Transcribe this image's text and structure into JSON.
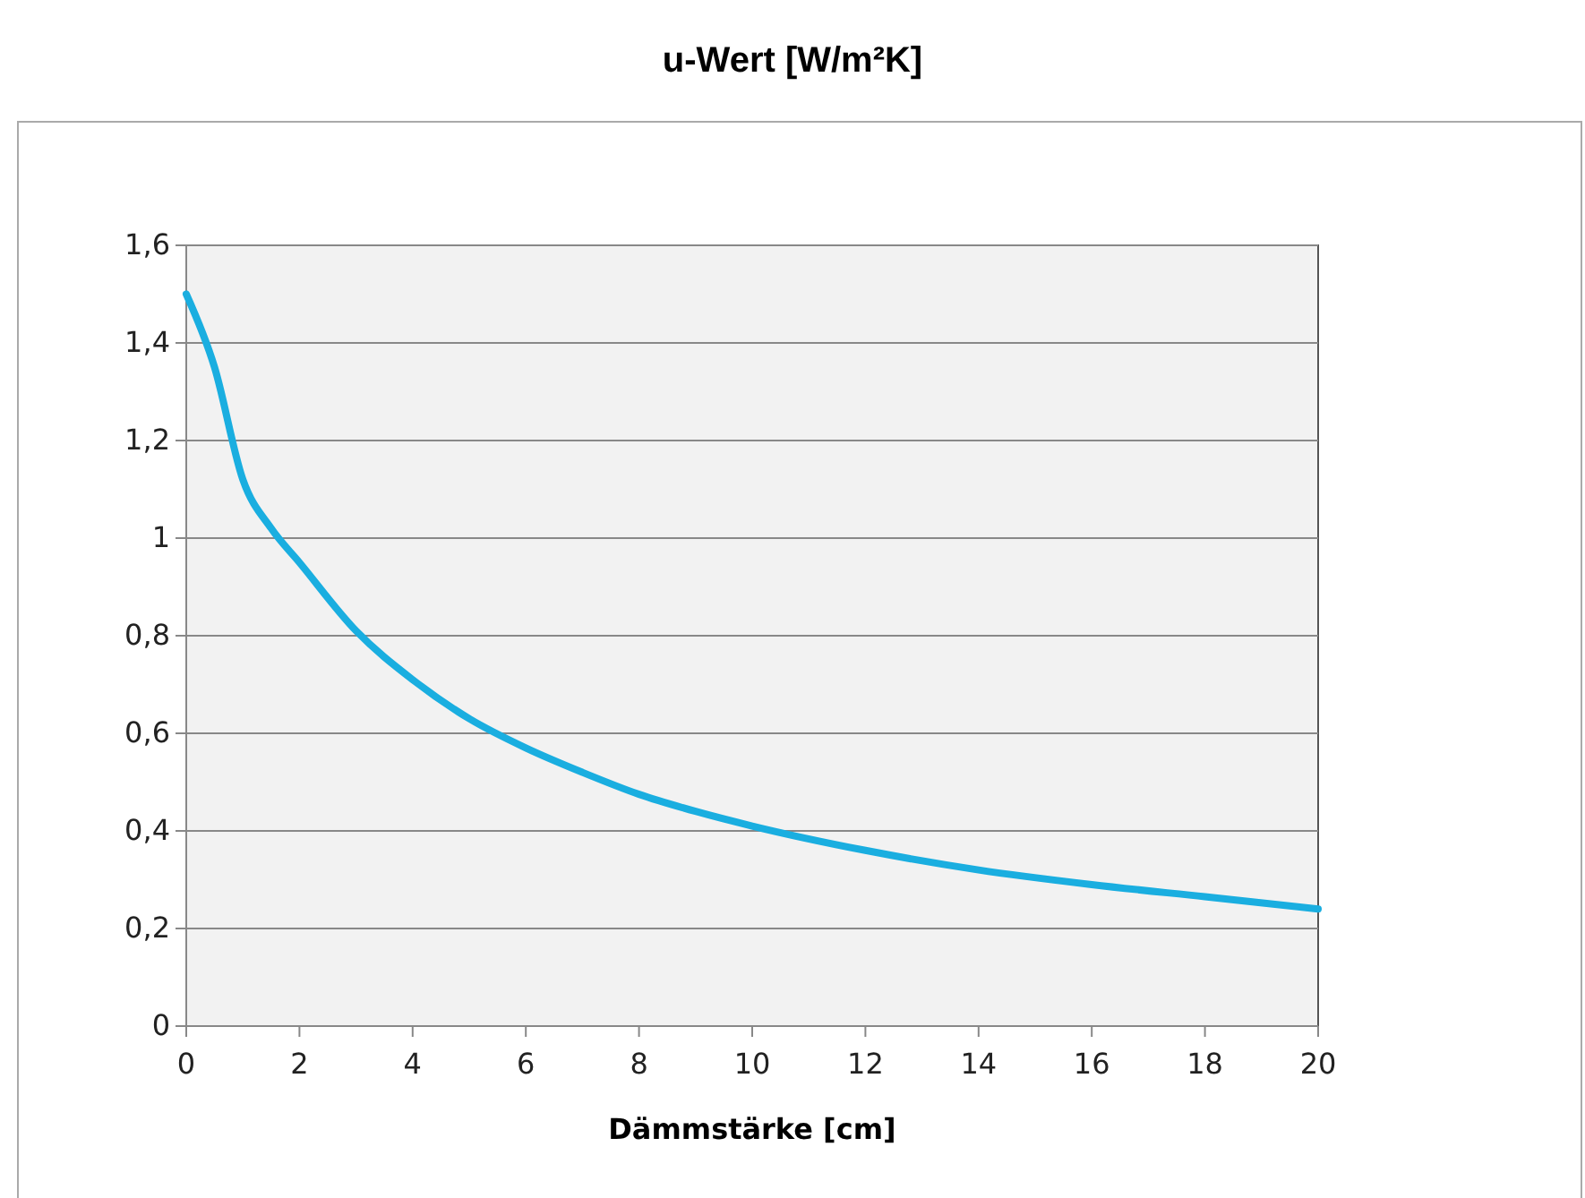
{
  "chart_data": {
    "type": "line",
    "title": "u-Wert [W/m²K]",
    "xlabel": "Dämmstärke [cm]",
    "x": [
      0,
      0.5,
      1,
      1.5,
      2,
      3,
      4,
      5,
      6,
      7,
      8,
      9,
      10,
      12,
      14,
      16,
      18,
      20
    ],
    "series": [
      {
        "color": "#1aaee0",
        "values": [
          1.5,
          1.35,
          1.12,
          1.02,
          0.95,
          0.81,
          0.71,
          0.63,
          0.57,
          0.52,
          0.475,
          0.44,
          0.41,
          0.36,
          0.32,
          0.29,
          0.265,
          0.24
        ]
      }
    ],
    "xlim": [
      0,
      20
    ],
    "xticks": [
      0,
      2,
      4,
      6,
      8,
      10,
      12,
      14,
      16,
      18,
      20
    ],
    "ylim": [
      0,
      1.6
    ],
    "yticks": [
      0,
      {
        "value": 0.2,
        "label": "0,2"
      },
      {
        "value": 0.4,
        "label": "0,4"
      },
      {
        "value": 0.6,
        "label": "0,6"
      },
      {
        "value": 0.8,
        "label": "0,8"
      },
      1,
      {
        "value": 1.2,
        "label": "1,2"
      },
      {
        "value": 1.4,
        "label": "1,4"
      },
      {
        "value": 1.6,
        "label": "1,6"
      }
    ],
    "grid": "y",
    "marker": "none",
    "line_style": "solid"
  }
}
